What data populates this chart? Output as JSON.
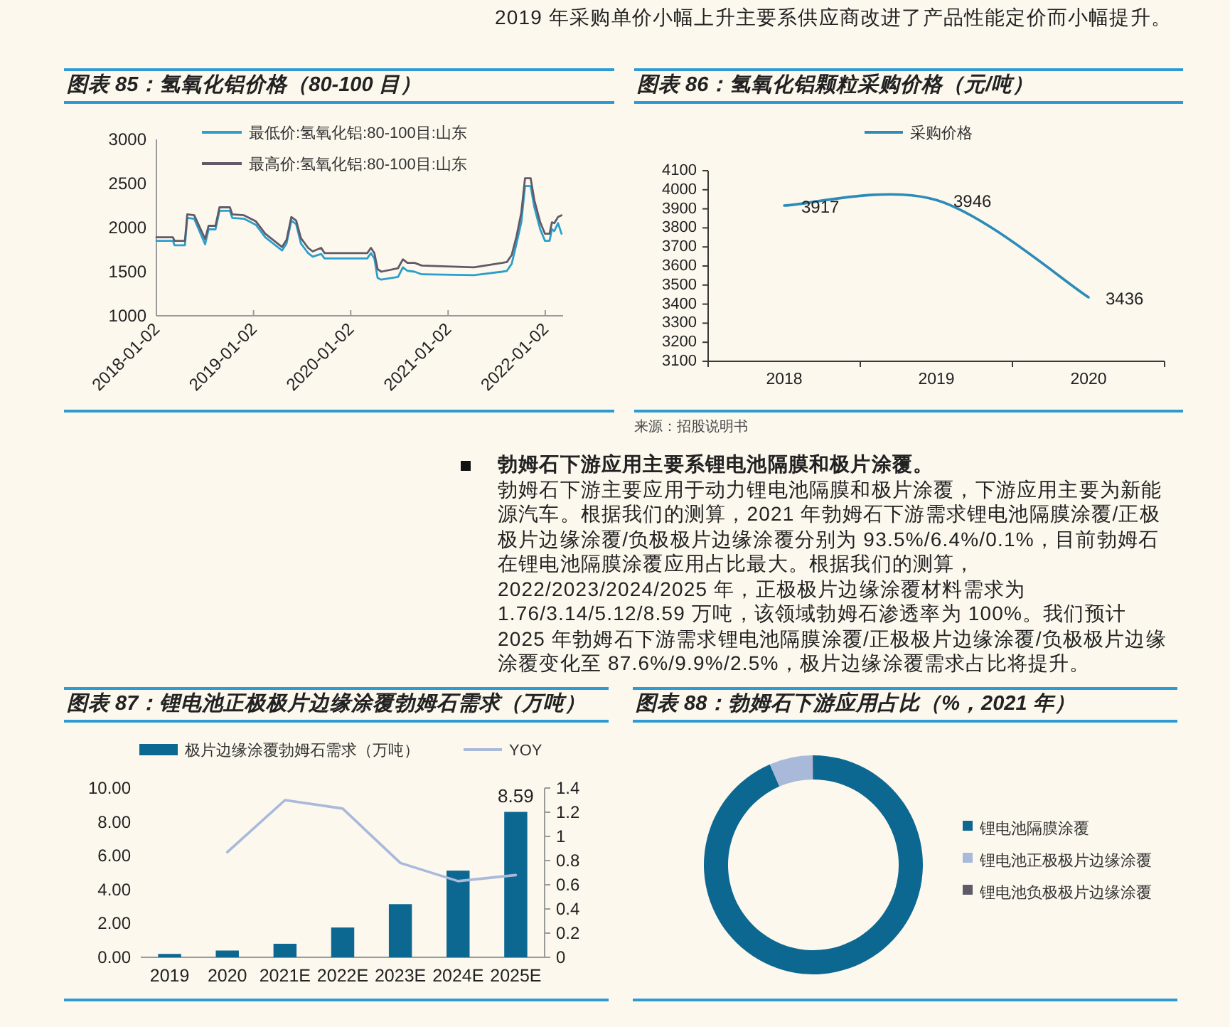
{
  "chart_data": [
    {
      "type": "other",
      "annotations": [
        "2019 年采购单价小幅上升主要系供应商改进了产品性能定价而小幅提升。"
      ]
    },
    {
      "type": "line",
      "title": "图表 85：氢氧化铝价格（80-100 目）",
      "x": [
        "2018-01-02",
        "2018-03-05",
        "2018-03-11",
        "2018-04-19",
        "2018-04-28",
        "2018-05-24",
        "2018-07-04",
        "2018-07-17",
        "2018-08-12",
        "2018-08-27",
        "2018-10-05",
        "2018-10-14",
        "2018-11-27",
        "2019-01-11",
        "2019-02-15",
        "2019-04-19",
        "2019-05-06",
        "2019-05-24",
        "2019-06-11",
        "2019-06-29",
        "2019-07-26",
        "2019-08-12",
        "2019-09-13",
        "2019-09-26",
        "2020-03-04",
        "2020-03-18",
        "2020-03-31",
        "2020-04-12",
        "2020-04-26",
        "2020-06-28",
        "2020-07-16",
        "2020-08-02",
        "2020-08-29",
        "2020-09-25",
        "2021-04-09",
        "2021-07-24",
        "2021-08-11",
        "2021-08-29",
        "2021-09-16",
        "2021-10-04",
        "2021-10-18",
        "2021-11-08",
        "2021-11-22",
        "2021-12-14",
        "2022-01-01",
        "2022-01-18",
        "2022-01-27",
        "2022-02-05",
        "2022-02-19",
        "2022-03-04"
      ],
      "series": [
        {
          "name": "最低价:氢氧化铝:80-100目:山东",
          "color": "#2a9fcb",
          "values": [
            1850,
            1850,
            1800,
            1800,
            2110,
            2100,
            1810,
            1980,
            1980,
            2190,
            2190,
            2110,
            2100,
            2030,
            1890,
            1740,
            1820,
            2080,
            2040,
            1820,
            1710,
            1670,
            1700,
            1650,
            1650,
            1710,
            1650,
            1430,
            1410,
            1440,
            1550,
            1510,
            1500,
            1470,
            1460,
            1500,
            1510,
            1590,
            1820,
            2060,
            2470,
            2470,
            2230,
            1980,
            1850,
            1850,
            1980,
            1960,
            2050,
            1930
          ]
        },
        {
          "name": "最高价:氢氧化铝:80-100目:山东",
          "color": "#605a68",
          "values": [
            1890,
            1890,
            1850,
            1850,
            2150,
            2140,
            1870,
            2020,
            2020,
            2230,
            2230,
            2150,
            2140,
            2070,
            1930,
            1780,
            1860,
            2120,
            2080,
            1880,
            1770,
            1730,
            1770,
            1710,
            1710,
            1770,
            1710,
            1530,
            1500,
            1540,
            1640,
            1600,
            1600,
            1570,
            1550,
            1600,
            1610,
            1690,
            1900,
            2170,
            2560,
            2560,
            2310,
            2060,
            1930,
            1930,
            2060,
            2050,
            2120,
            2140
          ]
        }
      ],
      "xlim": [
        "2018-01-02",
        "2022-03-10"
      ],
      "xticks": [
        "2018-01-02",
        "2019-01-02",
        "2020-01-02",
        "2021-01-02",
        "2022-01-02"
      ],
      "ylim": [
        1000,
        3000
      ],
      "yticks": [
        1000,
        1500,
        2000,
        2500,
        3000
      ],
      "legend": "top"
    },
    {
      "type": "line",
      "title": "图表 86：氢氧化铝颗粒采购价格（元/吨）",
      "categories": [
        "2018",
        "2019",
        "2020"
      ],
      "series": [
        {
          "name": "采购价格",
          "color": "#2d8bb8",
          "values": [
            3917,
            3946,
            3436
          ]
        }
      ],
      "ylim": [
        3100,
        4100
      ],
      "yticks": [
        3100,
        3200,
        3300,
        3400,
        3500,
        3600,
        3700,
        3800,
        3900,
        4000,
        4100
      ],
      "data_labels": true,
      "legend": "top",
      "annotations": [
        "来源：招股说明书"
      ]
    },
    {
      "type": "other",
      "title": "勃姆石下游应用主要系锂电池隔膜和极片涂覆。",
      "annotations": [
        "勃姆石下游主要应用于动力锂电池隔膜和极片涂覆，下游应用主要为新能源汽车。根据我们的测算，2021 年勃姆石下游需求锂电池隔膜涂覆/正极极片边缘涂覆/负极极片边缘涂覆分别为 93.5%/6.4%/0.1%，目前勃姆石在锂电池隔膜涂覆应用占比最大。根据我们的测算，2022/2023/2024/2025 年，正极极片边缘涂覆材料需求为 1.76/3.14/5.12/8.59 万吨，该领域勃姆石渗透率为 100%。我们预计 2025 年勃姆石下游需求锂电池隔膜涂覆/正极极片边缘涂覆/负极极片边缘涂覆变化至 87.6%/9.9%/2.5%，极片边缘涂覆需求占比将提升。"
      ]
    },
    {
      "type": "bar",
      "title": "图表 87：锂电池正极极片边缘涂覆勃姆石需求（万吨）",
      "categories": [
        "2019",
        "2020",
        "2021E",
        "2022E",
        "2023E",
        "2024E",
        "2025E"
      ],
      "series": [
        {
          "name": "极片边缘涂覆勃姆石需求（万吨）",
          "color": "#0d6891",
          "values": [
            0.2,
            0.4,
            0.8,
            1.76,
            3.14,
            5.12,
            8.59
          ],
          "value_labels": [
            null,
            null,
            null,
            null,
            null,
            null,
            "8.59"
          ]
        },
        {
          "name": "YOY",
          "type": "line",
          "axis": "y2",
          "color": "#a9b9da",
          "values": [
            null,
            0.87,
            1.3,
            1.23,
            0.78,
            0.63,
            0.68
          ]
        }
      ],
      "ylim": [
        0,
        10
      ],
      "yticks": [
        {
          "value": 0,
          "label": "0.00"
        },
        {
          "value": 2,
          "label": "2.00"
        },
        {
          "value": 4,
          "label": "4.00"
        },
        {
          "value": 6,
          "label": "6.00"
        },
        {
          "value": 8,
          "label": "8.00"
        },
        {
          "value": 10,
          "label": "10.00"
        }
      ],
      "y2lim": [
        0,
        1.4
      ],
      "y2ticks": [
        0,
        0.2,
        0.4,
        0.6,
        0.8,
        1,
        1.2,
        1.4
      ],
      "legend": "top"
    },
    {
      "type": "donut",
      "title": "图表 88：勃姆石下游应用占比（%，2021 年）",
      "categories": [
        "锂电池隔膜涂覆",
        "锂电池正极极片边缘涂覆",
        "锂电池负极极片边缘涂覆"
      ],
      "values": [
        93.5,
        6.4,
        0.1
      ],
      "colors": [
        "#0d6891",
        "#a9b9da",
        "#5e5a68"
      ],
      "legend": "right"
    }
  ]
}
